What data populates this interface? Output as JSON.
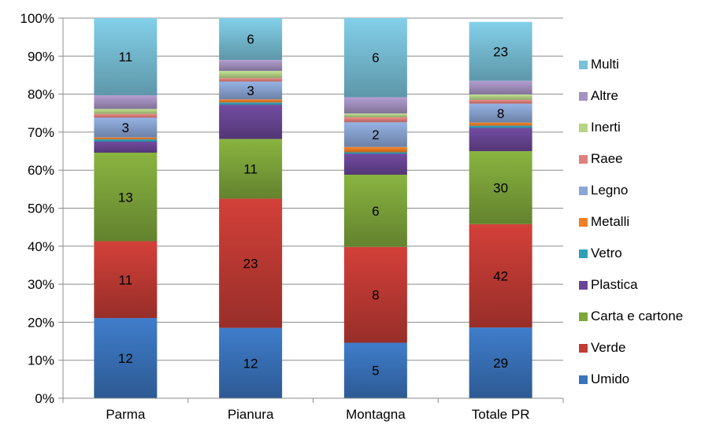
{
  "chart_data": {
    "type": "bar",
    "stacked": "percent",
    "categories": [
      "Parma",
      "Pianura",
      "Montagna",
      "Totale PR"
    ],
    "y_ticks": [
      "0%",
      "10%",
      "20%",
      "30%",
      "40%",
      "50%",
      "60%",
      "70%",
      "80%",
      "90%",
      "100%"
    ],
    "ylim": [
      0,
      100
    ],
    "grid": "horizontal",
    "legend_position": "right",
    "series": [
      {
        "name": "Umido",
        "color": "#3A74BC",
        "percent": [
          21.1,
          18.5,
          14.6,
          18.6
        ],
        "labels": [
          "12",
          "12",
          "5",
          "29"
        ]
      },
      {
        "name": "Verde",
        "color": "#C33B35",
        "percent": [
          20.2,
          34.0,
          25.2,
          27.2
        ],
        "labels": [
          "11",
          "23",
          "8",
          "42"
        ]
      },
      {
        "name": "Carta e cartone",
        "color": "#7FA73B",
        "percent": [
          23.3,
          15.7,
          19.0,
          19.2
        ],
        "labels": [
          "13",
          "11",
          "6",
          "30"
        ]
      },
      {
        "name": "Plastica",
        "color": "#6A4696",
        "percent": [
          2.9,
          9.0,
          5.5,
          6.1
        ],
        "labels": [
          "",
          "",
          "",
          ""
        ]
      },
      {
        "name": "Vetro",
        "color": "#2F9FB8",
        "percent": [
          0.6,
          0.6,
          0.4,
          0.6
        ],
        "labels": [
          "",
          "",
          "",
          ""
        ]
      },
      {
        "name": "Metalli",
        "color": "#F07E26",
        "percent": [
          0.5,
          0.8,
          1.4,
          0.8
        ],
        "labels": [
          "",
          "",
          "",
          ""
        ]
      },
      {
        "name": "Legno",
        "color": "#8AA6D4",
        "percent": [
          5.2,
          4.7,
          6.5,
          5.0
        ],
        "labels": [
          "3",
          "3",
          "2",
          "8"
        ]
      },
      {
        "name": "Raee",
        "color": "#E0807D",
        "percent": [
          1.0,
          0.9,
          1.3,
          1.0
        ],
        "labels": [
          "",
          "",
          "",
          ""
        ]
      },
      {
        "name": "Inerti",
        "color": "#B6D486",
        "percent": [
          1.3,
          1.9,
          1.0,
          1.4
        ],
        "labels": [
          "",
          "",
          "",
          ""
        ]
      },
      {
        "name": "Altre",
        "color": "#A592C2",
        "percent": [
          3.6,
          2.9,
          4.3,
          3.6
        ],
        "labels": [
          "",
          "",
          "",
          ""
        ]
      },
      {
        "name": "Multi",
        "color": "#79C1D9",
        "percent": [
          20.3,
          11.0,
          20.8,
          15.5
        ],
        "labels": [
          "11",
          "6",
          "6",
          "23"
        ]
      }
    ]
  }
}
